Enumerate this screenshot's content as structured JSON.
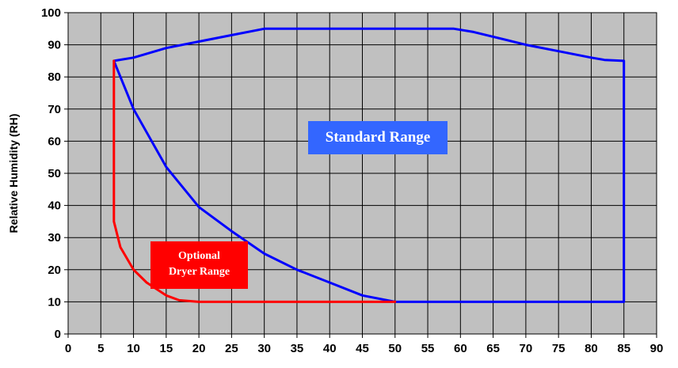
{
  "chart_data": {
    "type": "line",
    "title": "",
    "xlabel": "",
    "ylabel": "Relative Humidity (RH)",
    "xlim": [
      0,
      90
    ],
    "ylim": [
      0,
      100
    ],
    "x_ticks": [
      0,
      5,
      10,
      15,
      20,
      25,
      30,
      35,
      40,
      45,
      50,
      55,
      60,
      65,
      70,
      75,
      80,
      85,
      90
    ],
    "y_ticks": [
      0,
      10,
      20,
      30,
      40,
      50,
      60,
      70,
      80,
      90,
      100
    ],
    "grid": true,
    "plot_background": "#c0c0c0",
    "series": [
      {
        "name": "Standard Range",
        "color": "#0000ff",
        "points": [
          [
            7,
            85
          ],
          [
            10,
            86
          ],
          [
            15,
            89
          ],
          [
            20,
            91
          ],
          [
            25,
            93
          ],
          [
            30,
            95
          ],
          [
            35,
            95
          ],
          [
            40,
            95
          ],
          [
            45,
            95
          ],
          [
            50,
            95
          ],
          [
            55,
            95
          ],
          [
            59,
            95
          ],
          [
            62,
            94
          ],
          [
            65,
            92.5
          ],
          [
            70,
            90
          ],
          [
            75,
            88
          ],
          [
            80,
            86
          ],
          [
            82,
            85.3
          ],
          [
            85,
            85
          ],
          [
            85,
            10
          ],
          [
            80,
            10
          ],
          [
            70,
            10
          ],
          [
            60,
            10
          ],
          [
            52,
            10
          ],
          [
            50,
            10
          ],
          [
            45,
            12
          ],
          [
            40,
            16
          ],
          [
            35,
            20
          ],
          [
            30,
            25
          ],
          [
            25,
            32
          ],
          [
            20,
            39.5
          ],
          [
            15,
            52
          ],
          [
            10,
            70
          ],
          [
            7,
            85
          ]
        ]
      },
      {
        "name": "Optional Dryer Range",
        "color": "#ff0000",
        "points": [
          [
            7,
            85
          ],
          [
            7,
            35
          ],
          [
            8,
            27
          ],
          [
            10,
            20
          ],
          [
            12,
            16
          ],
          [
            15,
            12
          ],
          [
            17,
            10.5
          ],
          [
            20,
            10
          ],
          [
            25,
            10
          ],
          [
            30,
            10
          ],
          [
            35,
            10
          ],
          [
            40,
            10
          ],
          [
            45,
            10
          ],
          [
            50,
            10
          ]
        ]
      }
    ],
    "annotations": {
      "standard": "Standard Range",
      "dryer_line1": "Optional",
      "dryer_line2": "Dryer Range"
    }
  }
}
